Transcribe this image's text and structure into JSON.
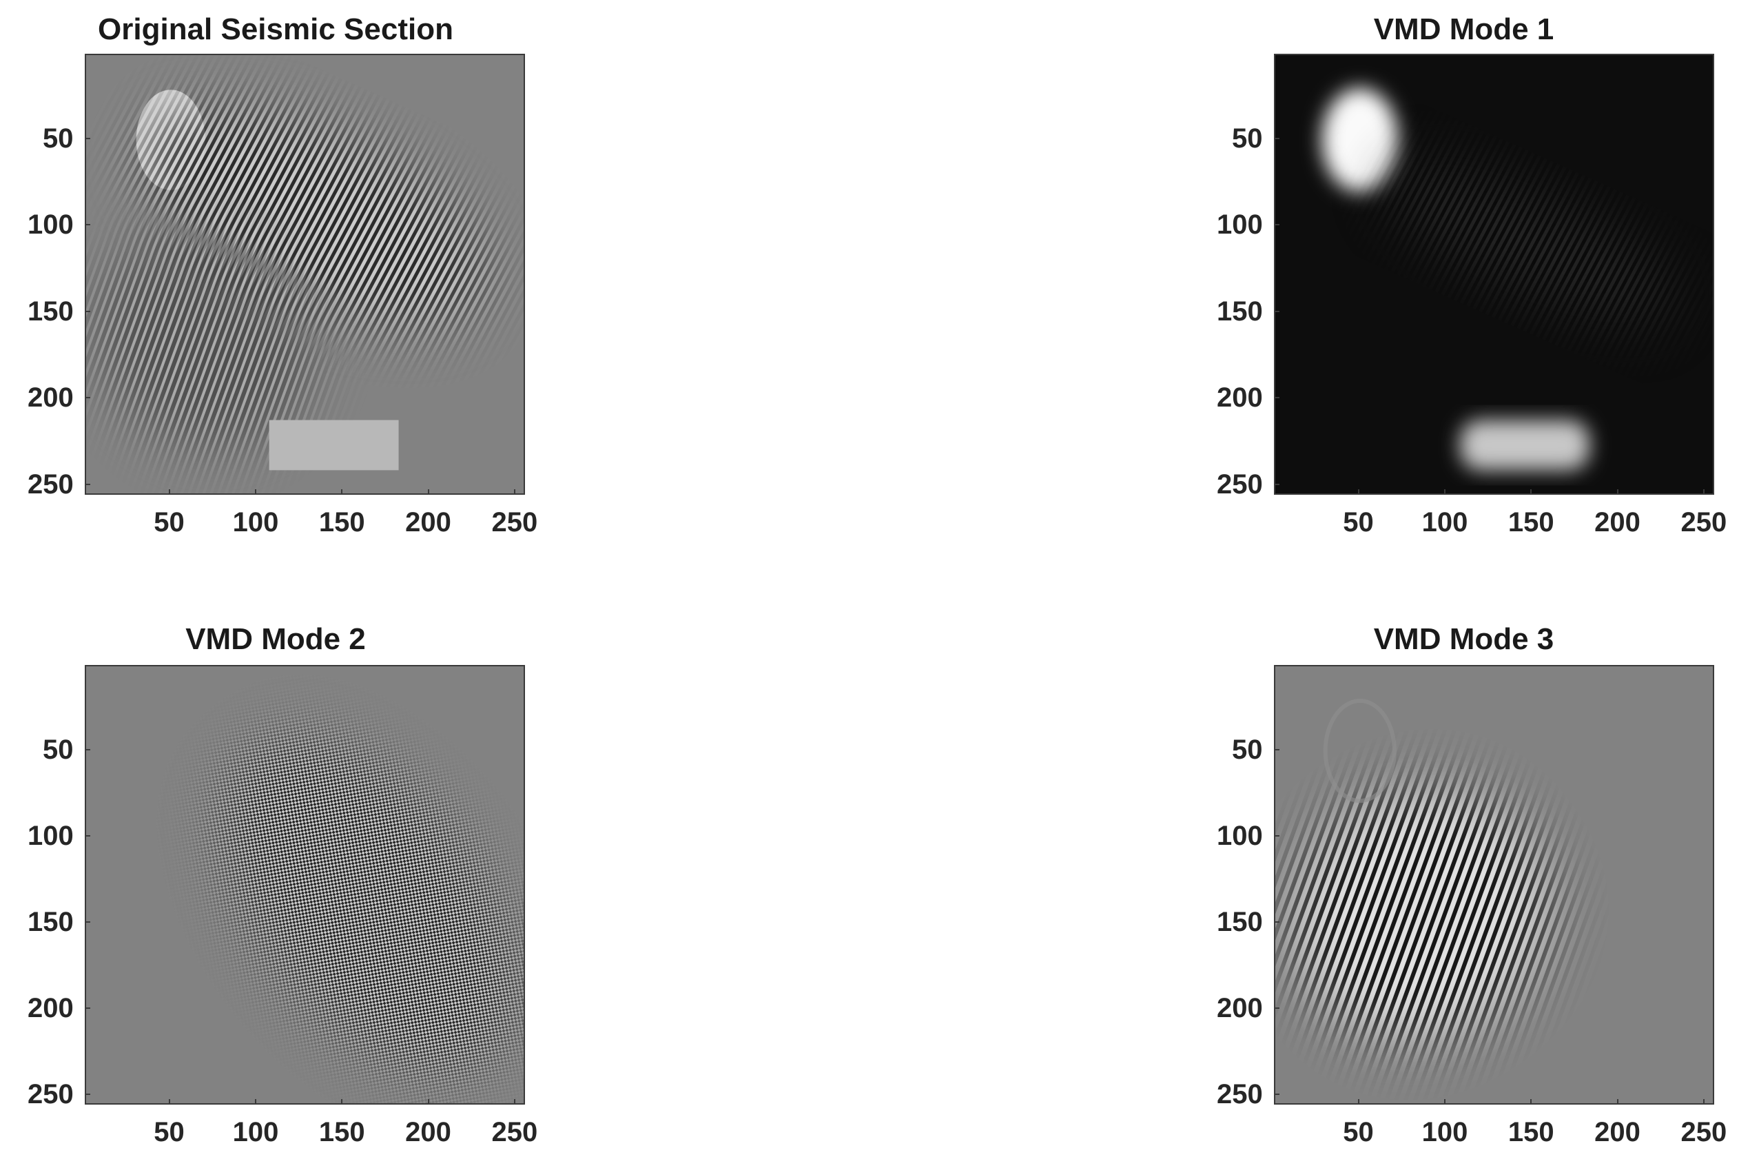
{
  "chart_data": [
    {
      "type": "heatmap",
      "title": "Original Seismic Section",
      "xticks": [
        50,
        100,
        150,
        200,
        250
      ],
      "yticks": [
        50,
        100,
        150,
        200,
        250
      ],
      "xlim": [
        1,
        256
      ],
      "ylim": [
        1,
        256
      ],
      "colormap": "gray",
      "features": [
        {
          "kind": "ellipse",
          "cx": 50,
          "cy": 50,
          "rx": 20,
          "ry": 29,
          "level": 0.82
        },
        {
          "kind": "oblique-stripes",
          "x_range": [
            25,
            240
          ],
          "y_range": [
            30,
            145
          ],
          "amplitude": "strong"
        },
        {
          "kind": "steep-stripes",
          "x_range": [
            10,
            130
          ],
          "y_range": [
            100,
            230
          ],
          "amplitude": "medium"
        },
        {
          "kind": "rectangle",
          "x_range": [
            107,
            182
          ],
          "y_range": [
            212,
            241
          ],
          "level": 0.72
        }
      ]
    },
    {
      "type": "heatmap",
      "title": "VMD Mode 1",
      "xticks": [
        50,
        100,
        150,
        200,
        250
      ],
      "yticks": [
        50,
        100,
        150,
        200,
        250
      ],
      "xlim": [
        1,
        256
      ],
      "ylim": [
        1,
        256
      ],
      "colormap": "gray",
      "features": [
        {
          "kind": "ellipse",
          "cx": 50,
          "cy": 50,
          "rx": 22,
          "ry": 30,
          "level": 0.98
        },
        {
          "kind": "rectangle",
          "x_range": [
            108,
            183
          ],
          "y_range": [
            212,
            241
          ],
          "level": 0.78
        }
      ]
    },
    {
      "type": "heatmap",
      "title": "VMD Mode 2",
      "xticks": [
        50,
        100,
        150,
        200,
        250
      ],
      "yticks": [
        50,
        100,
        150,
        200,
        250
      ],
      "xlim": [
        1,
        256
      ],
      "ylim": [
        1,
        256
      ],
      "colormap": "gray",
      "features": [
        {
          "kind": "fine-checker-band",
          "x_range": [
            85,
            250
          ],
          "y_range": [
            15,
            250
          ],
          "amplitude": "strong"
        }
      ]
    },
    {
      "type": "heatmap",
      "title": "VMD Mode 3",
      "xticks": [
        50,
        100,
        150,
        200,
        250
      ],
      "yticks": [
        50,
        100,
        150,
        200,
        250
      ],
      "xlim": [
        1,
        256
      ],
      "ylim": [
        1,
        256
      ],
      "colormap": "gray",
      "features": [
        {
          "kind": "steep-stripes",
          "cx": 85,
          "cy": 145,
          "rx": 75,
          "ry": 70,
          "amplitude": "strong"
        },
        {
          "kind": "ellipse-outline",
          "cx": 50,
          "cy": 50,
          "rx": 20,
          "ry": 29,
          "level": 0.55
        }
      ]
    }
  ]
}
